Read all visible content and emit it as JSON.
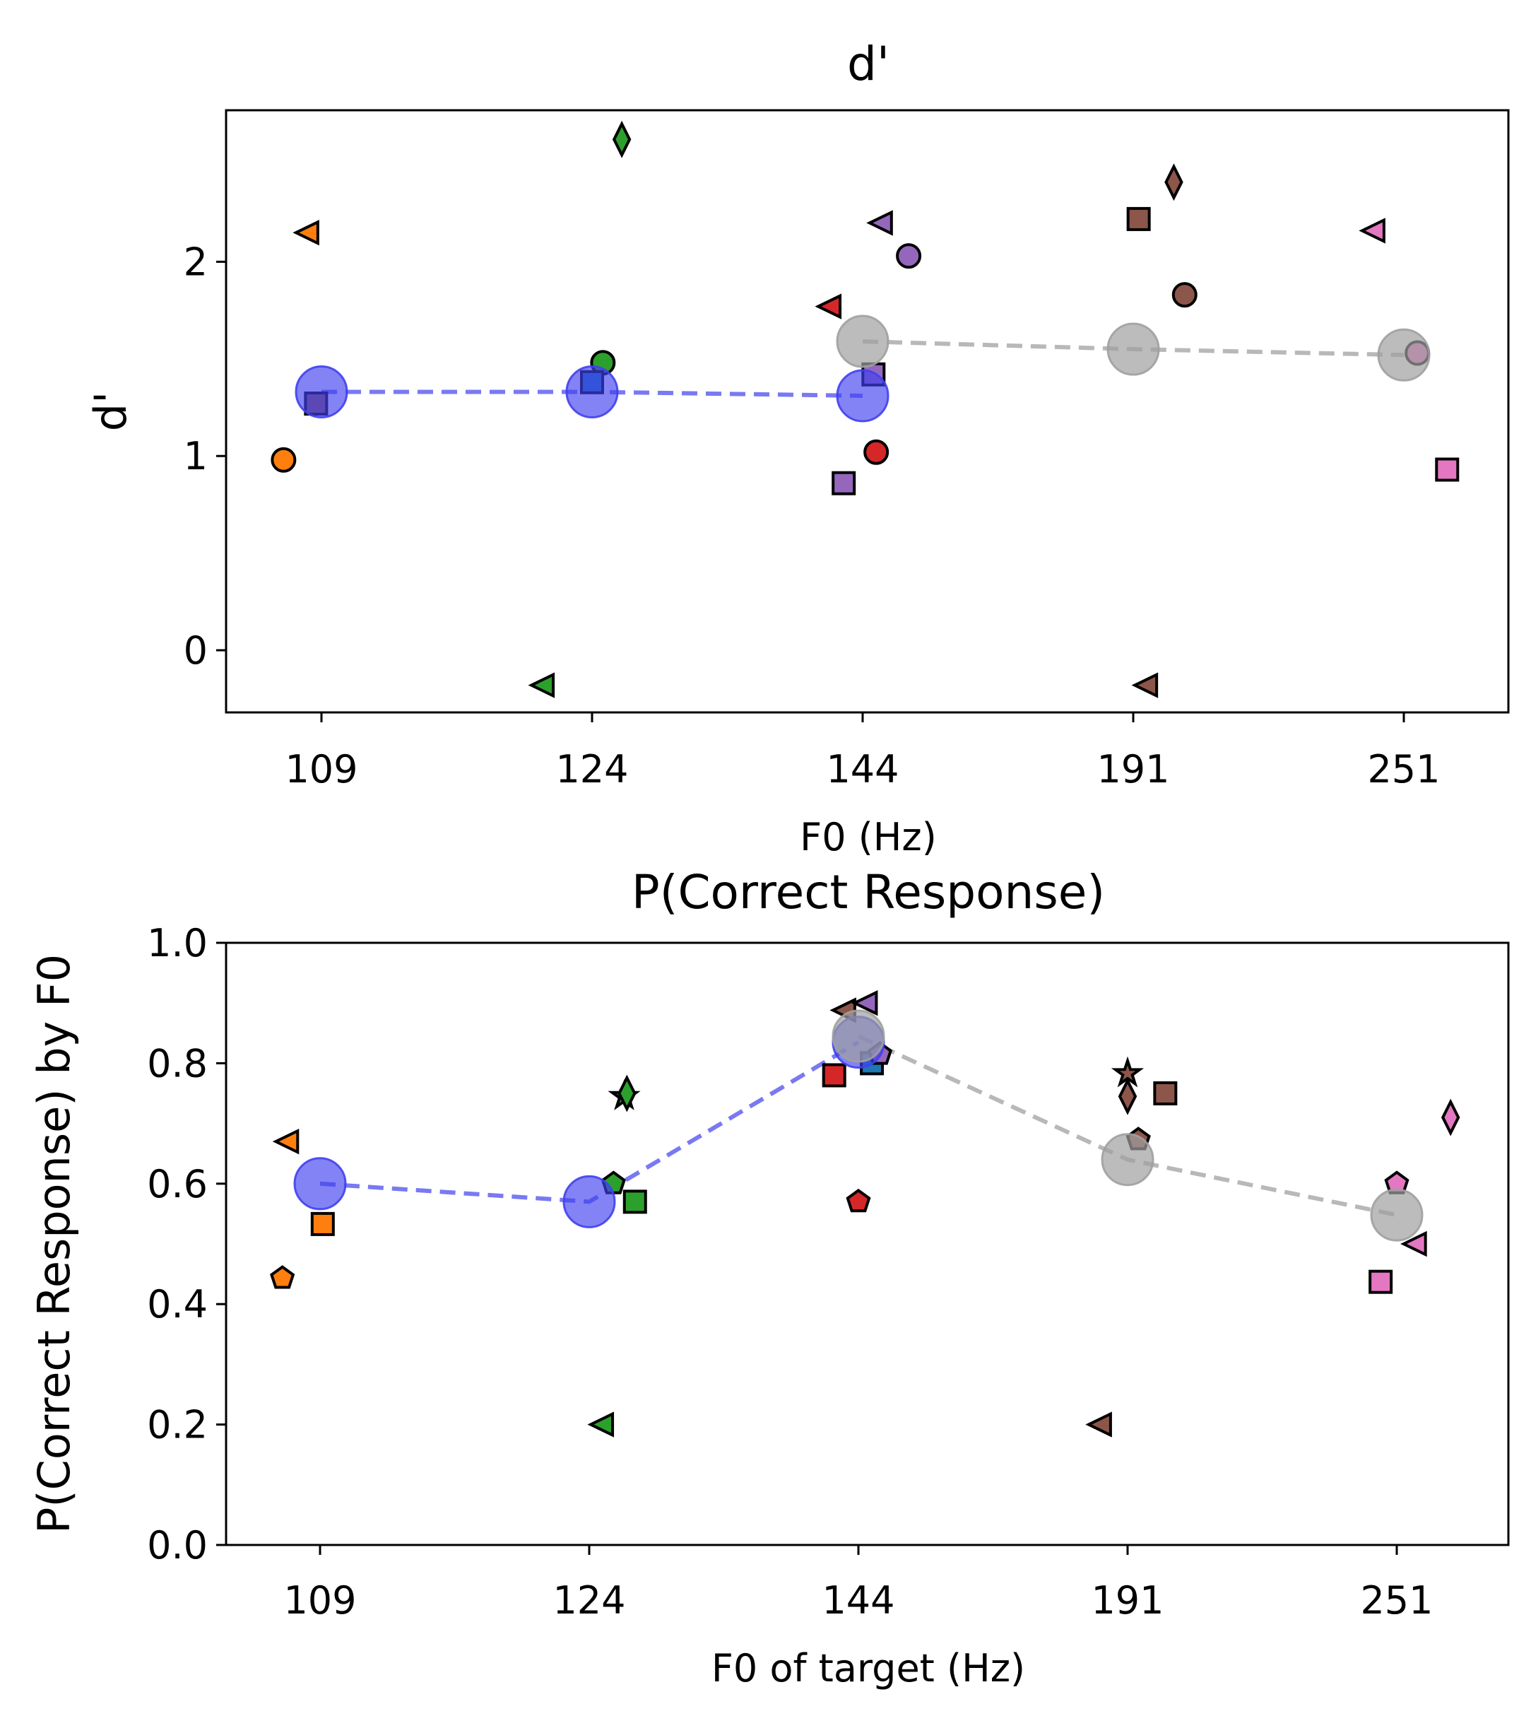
{
  "chart_data": [
    {
      "type": "scatter",
      "title": "d'",
      "xlabel": "F0 (Hz)",
      "ylabel": "d'",
      "categories": [
        "109",
        "124",
        "144",
        "191",
        "251"
      ],
      "ylim": [
        -0.32,
        2.78
      ],
      "yticks": [
        0,
        1,
        2
      ],
      "grid": false,
      "mean_series": [
        {
          "color": "#4040f0",
          "values": [
            [
              0,
              1.33
            ],
            [
              1,
              1.33
            ],
            [
              2,
              1.31
            ]
          ]
        },
        {
          "color": "#a0a0a0",
          "values": [
            [
              2,
              1.59
            ],
            [
              3,
              1.55
            ],
            [
              4,
              1.52
            ]
          ]
        }
      ],
      "points": [
        {
          "x": -0.14,
          "y": 0.98,
          "marker": "circle",
          "color": "#ff7f0e"
        },
        {
          "x": -0.05,
          "y": 2.15,
          "marker": "triangle-left",
          "color": "#ff7f0e"
        },
        {
          "x": -0.02,
          "y": 1.27,
          "marker": "square",
          "color": "#8c564b"
        },
        {
          "x": -0.18,
          "y": -0.18,
          "marker": "triangle-left",
          "color": "#2ca02c",
          "category": 1
        },
        {
          "x": 0.04,
          "y": 1.48,
          "marker": "circle",
          "color": "#2ca02c",
          "category": 1
        },
        {
          "x": 0.0,
          "y": 1.38,
          "marker": "square",
          "color": "#1f77b4",
          "category": 1
        },
        {
          "x": 0.11,
          "y": 2.63,
          "marker": "diamond",
          "color": "#2ca02c",
          "category": 1
        },
        {
          "x": -0.12,
          "y": 1.77,
          "marker": "triangle-left",
          "color": "#d62728",
          "category": 2
        },
        {
          "x": -0.07,
          "y": 0.86,
          "marker": "square",
          "color": "#9467bd",
          "category": 2
        },
        {
          "x": 0.04,
          "y": 1.42,
          "marker": "square",
          "color": "#9467bd",
          "category": 2
        },
        {
          "x": 0.05,
          "y": 1.02,
          "marker": "circle",
          "color": "#d62728",
          "category": 2
        },
        {
          "x": 0.07,
          "y": 2.2,
          "marker": "triangle-left",
          "color": "#9467bd",
          "category": 2
        },
        {
          "x": 0.17,
          "y": 2.03,
          "marker": "circle",
          "color": "#9467bd",
          "category": 2
        },
        {
          "x": 0.02,
          "y": 2.22,
          "marker": "square",
          "color": "#8c564b",
          "category": 3
        },
        {
          "x": 0.05,
          "y": -0.18,
          "marker": "triangle-left",
          "color": "#8c564b",
          "category": 3
        },
        {
          "x": 0.15,
          "y": 2.41,
          "marker": "diamond",
          "color": "#8c564b",
          "category": 3
        },
        {
          "x": 0.19,
          "y": 1.83,
          "marker": "circle",
          "color": "#8c564b",
          "category": 3
        },
        {
          "x": -0.11,
          "y": 2.16,
          "marker": "triangle-left",
          "color": "#e377c2",
          "category": 4
        },
        {
          "x": 0.05,
          "y": 1.53,
          "marker": "circle",
          "color": "#e377c2",
          "category": 4
        },
        {
          "x": 0.16,
          "y": 0.93,
          "marker": "square",
          "color": "#e377c2",
          "category": 4
        }
      ]
    },
    {
      "type": "scatter",
      "title": "P(Correct Response)",
      "xlabel": "F0 of target (Hz)",
      "ylabel": "P(Correct Response) by F0",
      "categories": [
        "109",
        "124",
        "144",
        "191",
        "251"
      ],
      "ylim": [
        0.0,
        1.0
      ],
      "yticks": [
        "0.0",
        "0.2",
        "0.4",
        "0.6",
        "0.8",
        "1.0"
      ],
      "grid": false,
      "mean_series": [
        {
          "color": "#4040f0",
          "values": [
            [
              0,
              0.6
            ],
            [
              1,
              0.57
            ],
            [
              2,
              0.835
            ]
          ]
        },
        {
          "color": "#a0a0a0",
          "values": [
            [
              2,
              0.845
            ],
            [
              3,
              0.64
            ],
            [
              4,
              0.548
            ]
          ]
        }
      ],
      "points": [
        {
          "x": -0.14,
          "y": 0.443,
          "marker": "pentagon",
          "color": "#ff7f0e"
        },
        {
          "x": -0.12,
          "y": 0.67,
          "marker": "triangle-left",
          "color": "#ff7f0e"
        },
        {
          "x": 0.01,
          "y": 0.533,
          "marker": "square",
          "color": "#ff7f0e"
        },
        {
          "x": 0.05,
          "y": 0.2,
          "marker": "triangle-left",
          "color": "#2ca02c",
          "category": 1
        },
        {
          "x": 0.09,
          "y": 0.6,
          "marker": "pentagon",
          "color": "#2ca02c",
          "category": 1
        },
        {
          "x": 0.13,
          "y": 0.745,
          "marker": "star",
          "color": "#2ca02c",
          "category": 1
        },
        {
          "x": 0.14,
          "y": 0.75,
          "marker": "diamond",
          "color": "#2ca02c",
          "category": 1
        },
        {
          "x": 0.17,
          "y": 0.57,
          "marker": "square",
          "color": "#2ca02c",
          "category": 1
        },
        {
          "x": -0.09,
          "y": 0.78,
          "marker": "square",
          "color": "#d62728",
          "category": 2
        },
        {
          "x": 0.0,
          "y": 0.57,
          "marker": "pentagon",
          "color": "#d62728",
          "category": 2
        },
        {
          "x": -0.05,
          "y": 0.888,
          "marker": "triangle-left",
          "color": "#8c564b",
          "category": 2
        },
        {
          "x": 0.03,
          "y": 0.9,
          "marker": "triangle-left",
          "color": "#9467bd",
          "category": 2
        },
        {
          "x": 0.05,
          "y": 0.8,
          "marker": "square",
          "color": "#1f77b4",
          "category": 2
        },
        {
          "x": 0.08,
          "y": 0.815,
          "marker": "pentagon",
          "color": "#9467bd",
          "category": 2
        },
        {
          "x": -0.1,
          "y": 0.2,
          "marker": "triangle-left",
          "color": "#8c564b",
          "category": 3
        },
        {
          "x": 0.0,
          "y": 0.783,
          "marker": "star",
          "color": "#8c564b",
          "category": 3
        },
        {
          "x": 0.0,
          "y": 0.745,
          "marker": "diamond",
          "color": "#8c564b",
          "category": 3
        },
        {
          "x": 0.04,
          "y": 0.673,
          "marker": "pentagon",
          "color": "#8c564b",
          "category": 3
        },
        {
          "x": 0.14,
          "y": 0.75,
          "marker": "square",
          "color": "#8c564b",
          "category": 3
        },
        {
          "x": -0.06,
          "y": 0.437,
          "marker": "square",
          "color": "#e377c2",
          "category": 4
        },
        {
          "x": 0.0,
          "y": 0.6,
          "marker": "pentagon",
          "color": "#e377c2",
          "category": 4
        },
        {
          "x": 0.07,
          "y": 0.5,
          "marker": "triangle-left",
          "color": "#e377c2",
          "category": 4
        },
        {
          "x": 0.2,
          "y": 0.71,
          "marker": "diamond",
          "color": "#e377c2",
          "category": 4
        }
      ]
    }
  ]
}
